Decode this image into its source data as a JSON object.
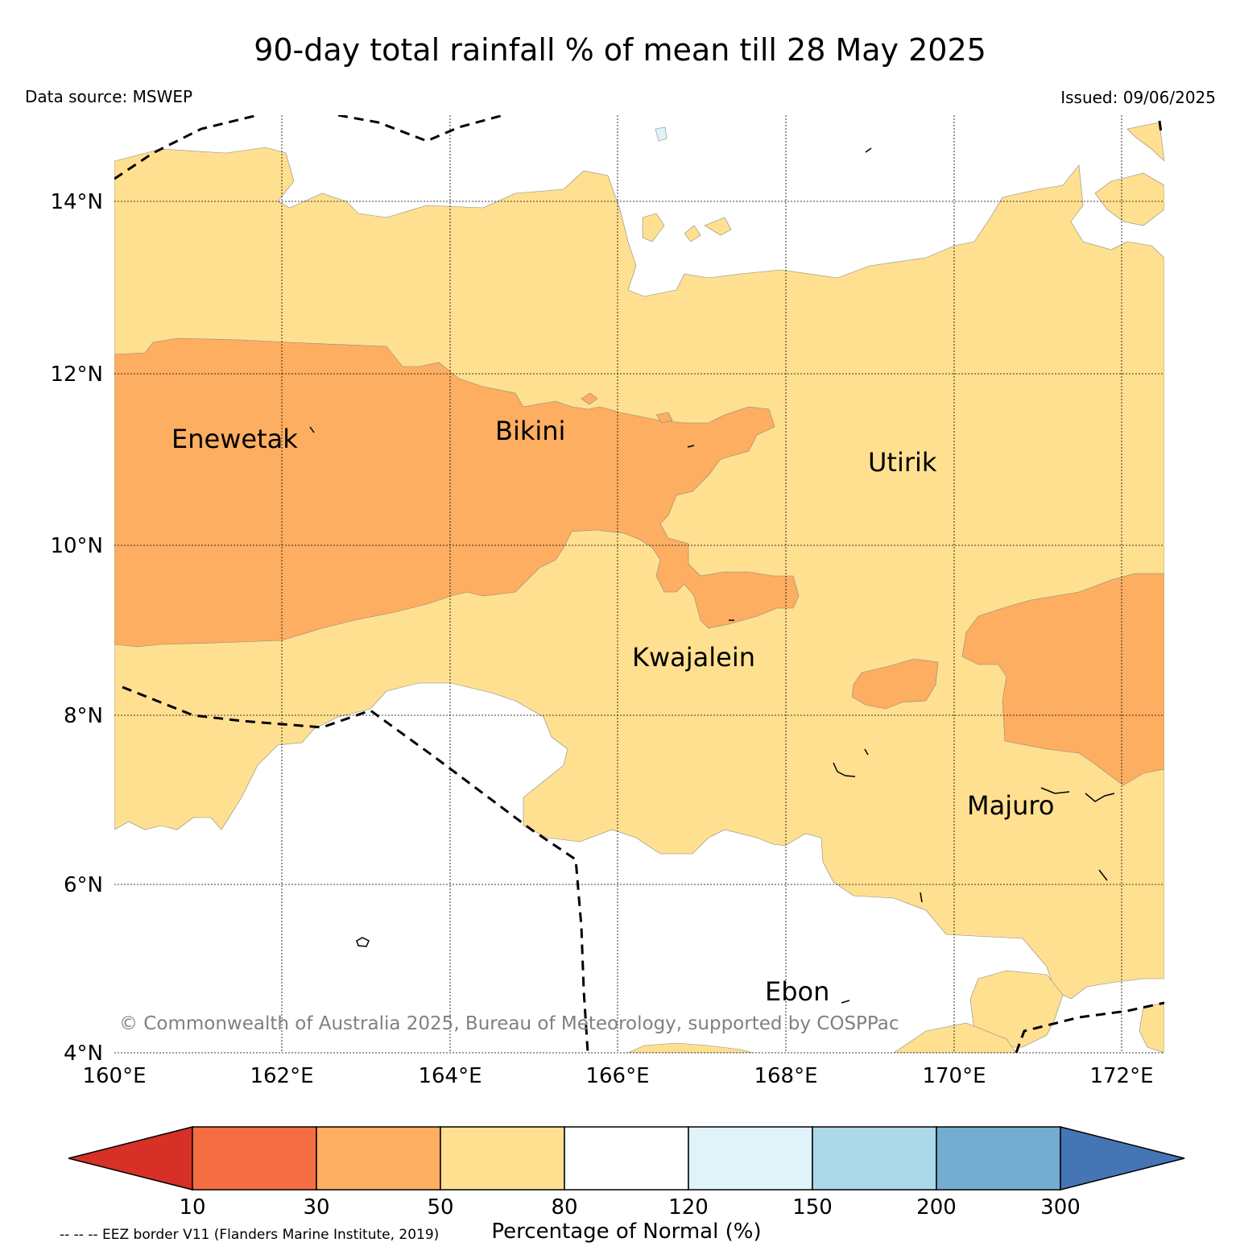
{
  "title": "90-day total rainfall % of mean till 28 May 2025",
  "data_source": "Data source: MSWEP",
  "issued": "Issued: 09/06/2025",
  "copyright": "© Commonwealth of Australia 2025, Bureau of Meteorology, supported by COSPPac",
  "eez_note": "-- -- -- EEZ border V11 (Flanders Marine Institute, 2019)",
  "map": {
    "lon_labels": [
      "160°E",
      "162°E",
      "164°E",
      "166°E",
      "168°E",
      "170°E",
      "172°E"
    ],
    "lat_labels": [
      "14°N",
      "12°N",
      "10°N",
      "8°N",
      "6°N",
      "4°N"
    ],
    "places": [
      {
        "name": "Enewetak",
        "lon": 160.68,
        "lat": 11.2
      },
      {
        "name": "Bikini",
        "lon": 164.53,
        "lat": 11.35
      },
      {
        "name": "Utirik",
        "lon": 168.98,
        "lat": 10.95
      },
      {
        "name": "Kwajalein",
        "lon": 166.17,
        "lat": 8.65
      },
      {
        "name": "Majuro",
        "lon": 170.15,
        "lat": 6.93
      },
      {
        "name": "Ebon",
        "lon": 167.75,
        "lat": 4.67
      }
    ]
  },
  "colorbar": {
    "label": "Percentage of Normal (%)",
    "ticks": [
      "10",
      "30",
      "50",
      "80",
      "120",
      "150",
      "200",
      "300"
    ],
    "colors": {
      "lt10": "#d73027",
      "10_30": "#f46d43",
      "30_50": "#fdae61",
      "50_80": "#fee090",
      "80_120": "#ffffff",
      "120_150": "#e0f3f8",
      "150_200": "#abd9e9",
      "200_300": "#74add1",
      "gt300": "#4575b4"
    }
  }
}
